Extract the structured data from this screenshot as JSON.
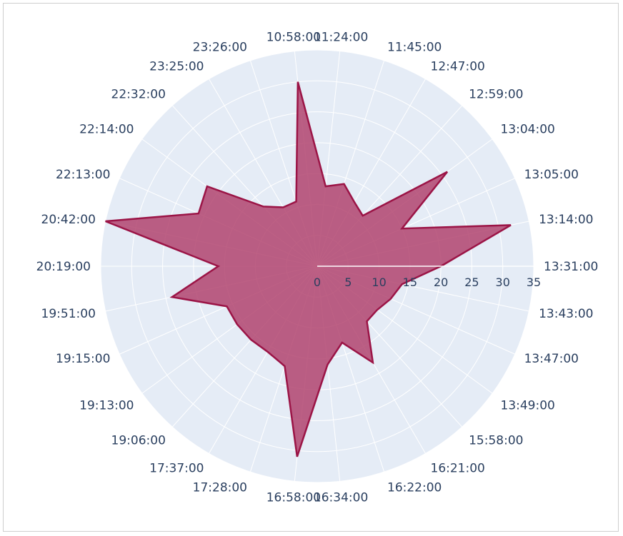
{
  "chart_data": {
    "type": "polar-area",
    "categories": [
      "13:31:00",
      "13:14:00",
      "13:05:00",
      "13:04:00",
      "12:59:00",
      "12:47:00",
      "11:45:00",
      "11:24:00",
      "10:58:00",
      "23:26:00",
      "23:25:00",
      "22:32:00",
      "22:14:00",
      "22:13:00",
      "20:42:00",
      "20:19:00",
      "19:51:00",
      "19:15:00",
      "19:13:00",
      "19:06:00",
      "17:37:00",
      "17:28:00",
      "16:58:00",
      "16:34:00",
      "16:22:00",
      "16:21:00",
      "15:58:00",
      "13:49:00",
      "13:47:00",
      "13:43:00"
    ],
    "values": [
      20,
      32,
      15,
      26,
      11,
      12,
      14,
      13,
      30,
      11,
      11,
      13,
      22,
      21,
      35,
      16,
      24,
      16,
      16,
      16,
      16,
      17,
      31,
      16,
      13,
      18,
      12,
      12,
      13,
      14
    ],
    "radial_ticks": [
      "0",
      "5",
      "10",
      "15",
      "20",
      "25",
      "30",
      "35"
    ],
    "range": [
      0,
      35
    ],
    "grid": true,
    "colors": {
      "fill": "#b2446f",
      "line": "#9b1446",
      "polar_bg": "#e5ecf6",
      "grid": "#ffffff"
    }
  }
}
